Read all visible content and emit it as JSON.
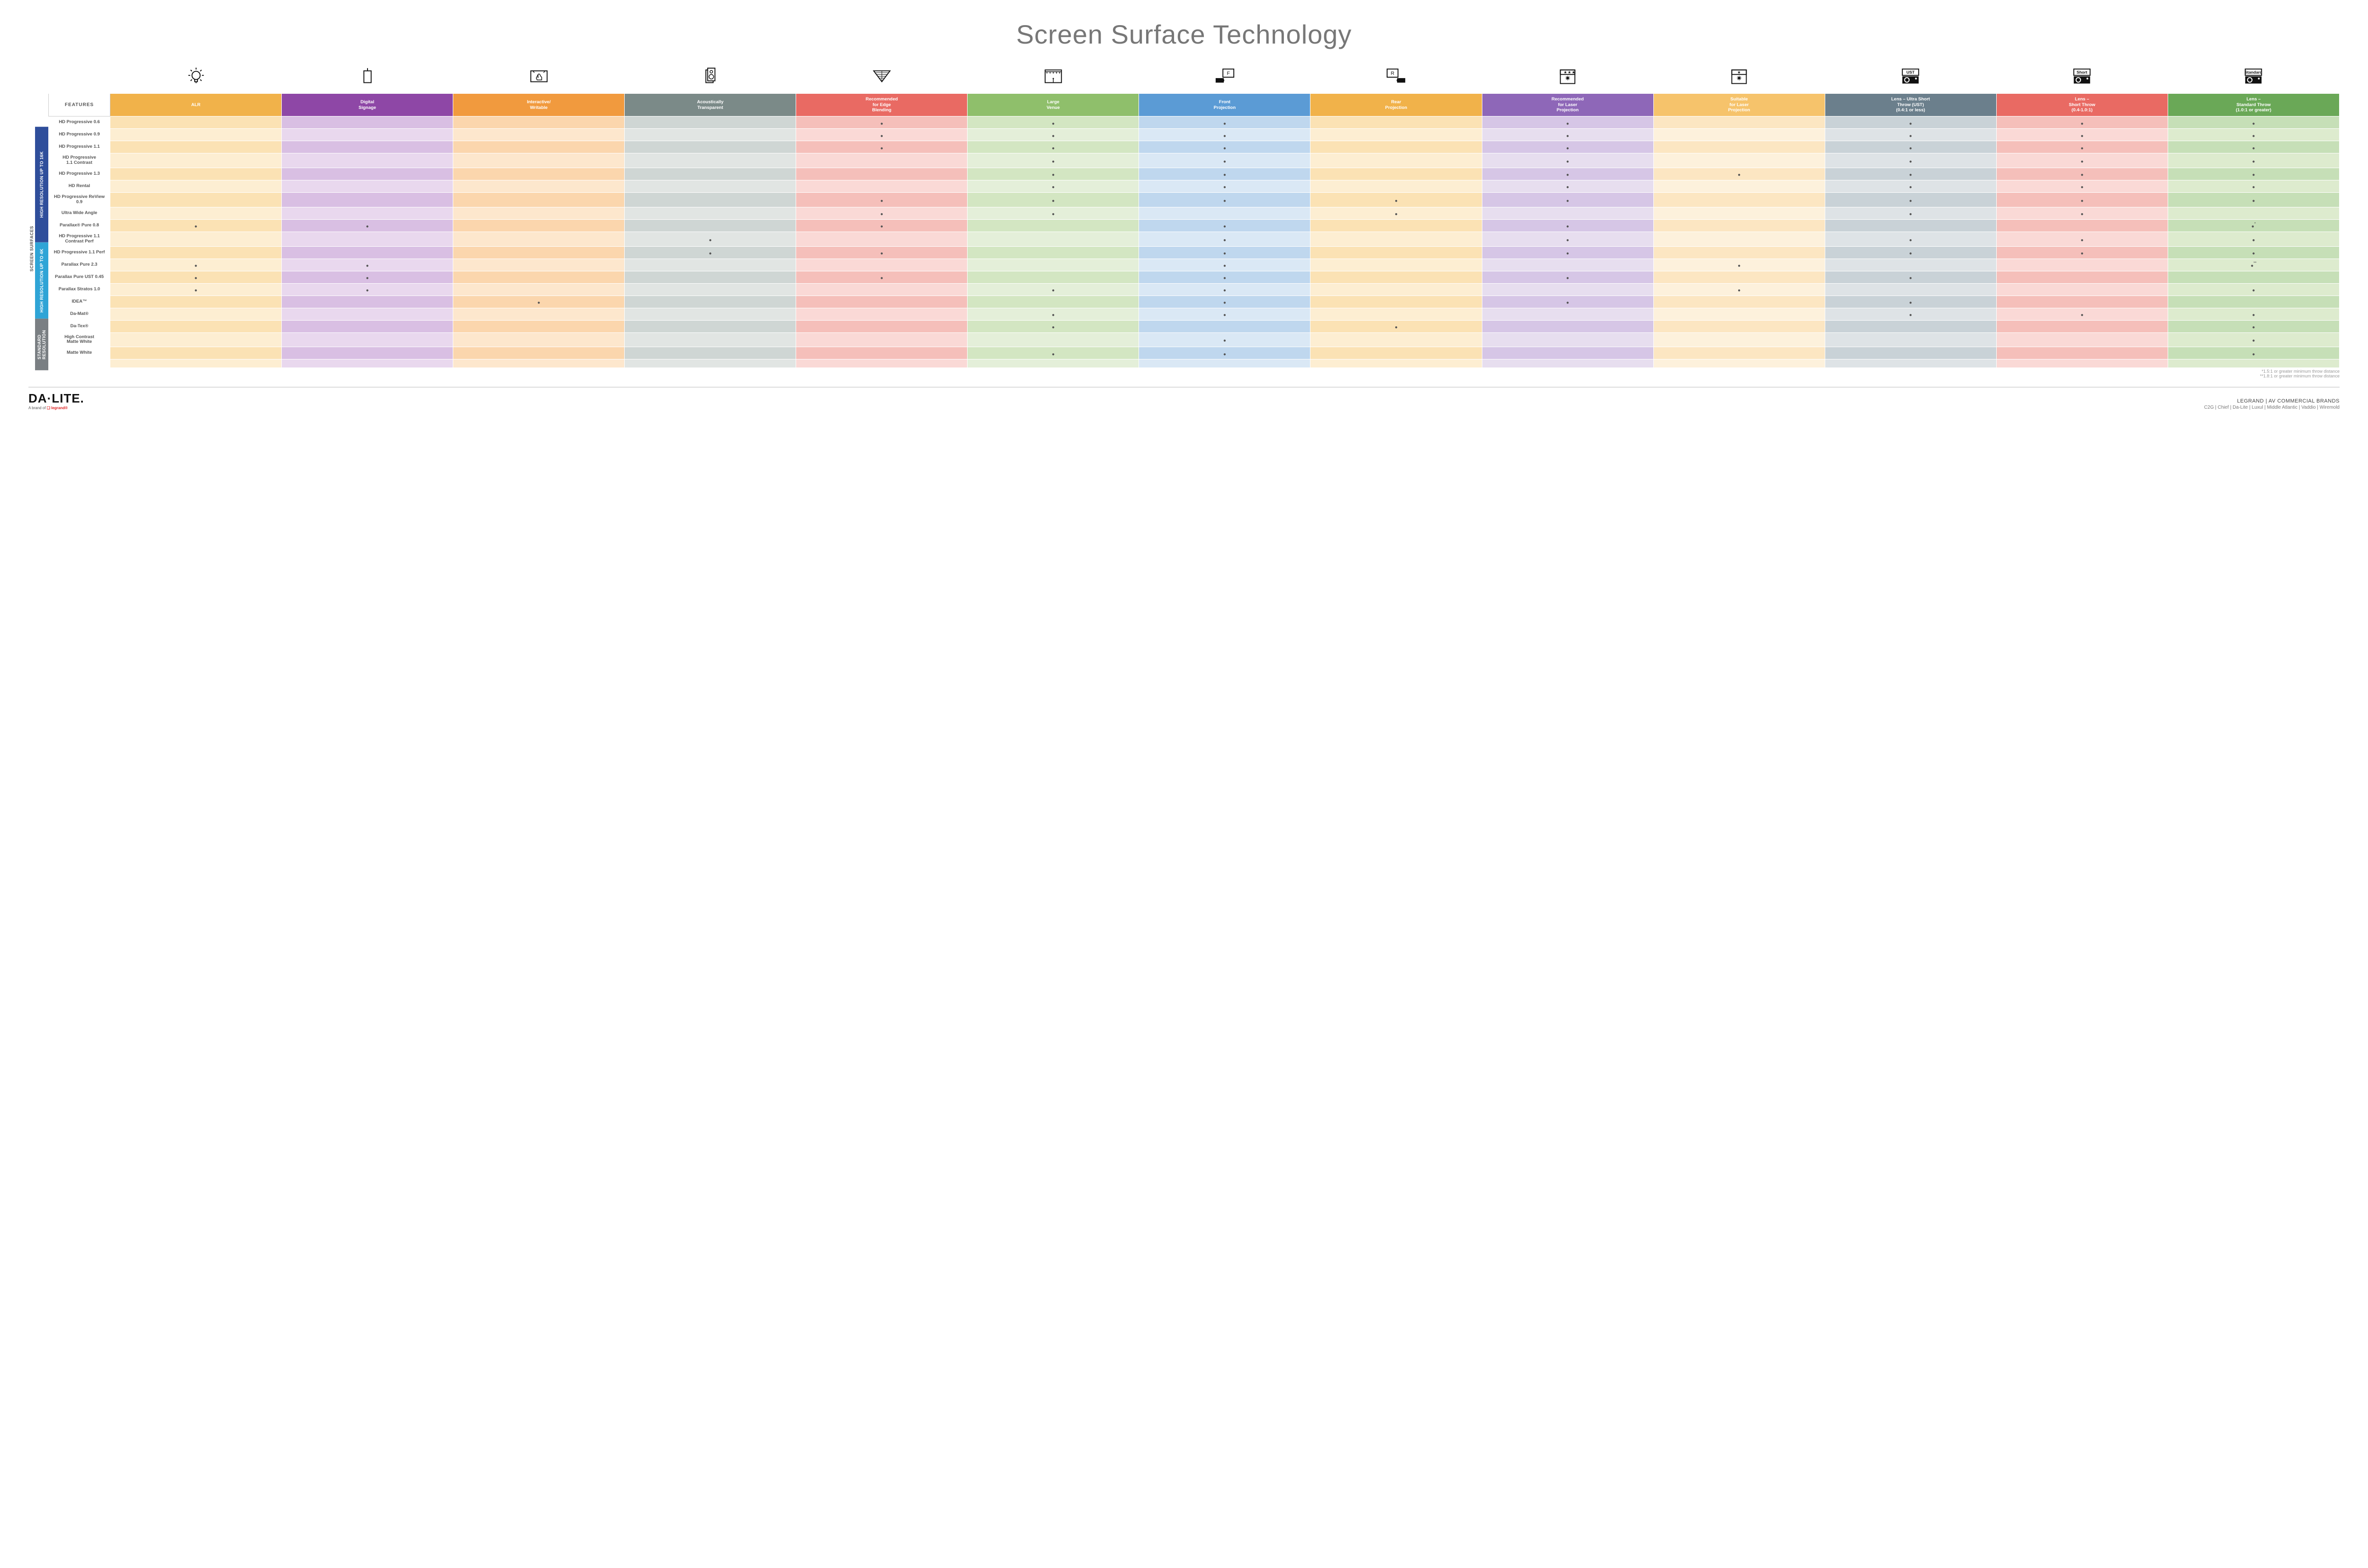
{
  "title": "Screen Surface Technology",
  "colors": {
    "columns": [
      "#f1b24a",
      "#8e47a6",
      "#f19a3e",
      "#7b8a88",
      "#e96a63",
      "#8fbf6b",
      "#5b9bd5",
      "#f1b24a",
      "#8e67b8",
      "#f6c36b",
      "#6b7f8c",
      "#e96a63",
      "#6aa857"
    ],
    "tint_even": [
      "#fbe2b4",
      "#d9bfe3",
      "#fbd6ad",
      "#cfd6d4",
      "#f5bfba",
      "#d3e6c2",
      "#bfd7ee",
      "#fbe2b4",
      "#d6c6e6",
      "#fce6c2",
      "#c9d2d7",
      "#f5bfba",
      "#c6dfb7"
    ],
    "tint_odd": [
      "#fdeed2",
      "#e9d8ee",
      "#fde7cd",
      "#e1e5e3",
      "#fad9d6",
      "#e4efd9",
      "#dae8f5",
      "#fdeed2",
      "#e7deef",
      "#fdf1dc",
      "#dee3e6",
      "#fad9d6",
      "#ddebce"
    ],
    "groups": {
      "g0": "#2f4e9b",
      "g1": "#2fa4d6",
      "g2": "#7a7f83"
    }
  },
  "columns": [
    {
      "key": "alr",
      "label": "ALR",
      "icon": "bulb"
    },
    {
      "key": "signage",
      "label": "Digital\nSignage",
      "icon": "signage"
    },
    {
      "key": "interactive",
      "label": "Interactive/\nWritable",
      "icon": "touch"
    },
    {
      "key": "acoustic",
      "label": "Acoustically\nTransparent",
      "icon": "speaker"
    },
    {
      "key": "edge",
      "label": "Recommended\nfor Edge\nBlending",
      "icon": "blend"
    },
    {
      "key": "large",
      "label": "Large\nVenue",
      "icon": "venue"
    },
    {
      "key": "front",
      "label": "Front\nProjection",
      "icon": "front"
    },
    {
      "key": "rear",
      "label": "Rear\nProjection",
      "icon": "rear"
    },
    {
      "key": "reclaser",
      "label": "Recommended\nfor Laser\nProjection",
      "icon": "laser_rec"
    },
    {
      "key": "suitlaser",
      "label": "Suitable\nfor Laser\nProjection",
      "icon": "laser_suit"
    },
    {
      "key": "ust",
      "label": "Lens – Ultra Short\nThrow (UST)\n(0.4:1 or less)",
      "icon": "proj_ust"
    },
    {
      "key": "short",
      "label": "Lens –\nShort Throw\n(0.4-1.0:1)",
      "icon": "proj_short"
    },
    {
      "key": "std",
      "label": "Lens –\nStandard Throw\n(1.0:1 or greater)",
      "icon": "proj_std"
    }
  ],
  "features_header": "FEATURES",
  "side_label": "SCREEN SURFACES",
  "groups": [
    {
      "key": "g0",
      "label": "HIGH RESOLUTION UP TO 16K",
      "rows": 9
    },
    {
      "key": "g1",
      "label": "HIGH RESOLUTION UP TO 4K",
      "rows": 6
    },
    {
      "key": "g2",
      "label": "STANDARD\nRESOLUTION",
      "rows": 4
    }
  ],
  "rows": [
    {
      "g": "g0",
      "label": "HD Progressive 0.6",
      "c": {
        "edge": "•",
        "large": "•",
        "front": "•",
        "reclaser": "•",
        "ust": "•",
        "short": "•",
        "std": "•"
      }
    },
    {
      "g": "g0",
      "label": "HD Progressive 0.9",
      "c": {
        "edge": "•",
        "large": "•",
        "front": "•",
        "reclaser": "•",
        "ust": "•",
        "short": "•",
        "std": "•"
      }
    },
    {
      "g": "g0",
      "label": "HD Progressive 1.1",
      "c": {
        "edge": "•",
        "large": "•",
        "front": "•",
        "reclaser": "•",
        "ust": "•",
        "short": "•",
        "std": "•"
      }
    },
    {
      "g": "g0",
      "label": "HD Progressive\n1.1 Contrast",
      "c": {
        "large": "•",
        "front": "•",
        "reclaser": "•",
        "ust": "•",
        "short": "•",
        "std": "•"
      }
    },
    {
      "g": "g0",
      "label": "HD Progressive 1.3",
      "c": {
        "large": "•",
        "front": "•",
        "reclaser": "•",
        "suitlaser": "•",
        "ust": "•",
        "short": "•",
        "std": "•"
      }
    },
    {
      "g": "g0",
      "label": "HD Rental",
      "c": {
        "large": "•",
        "front": "•",
        "reclaser": "•",
        "ust": "•",
        "short": "•",
        "std": "•"
      }
    },
    {
      "g": "g0",
      "label": "HD Progressive ReView 0.9",
      "c": {
        "edge": "•",
        "large": "•",
        "front": "•",
        "rear": "•",
        "reclaser": "•",
        "ust": "•",
        "short": "•",
        "std": "•"
      }
    },
    {
      "g": "g0",
      "label": "Ultra Wide Angle",
      "c": {
        "edge": "•",
        "large": "•",
        "rear": "•",
        "ust": "•",
        "short": "•"
      }
    },
    {
      "g": "g0",
      "label": "Parallax® Pure 0.8",
      "c": {
        "alr": "•",
        "signage": "•",
        "edge": "•",
        "front": "•",
        "reclaser": "•",
        "std": "•*"
      }
    },
    {
      "g": "g1",
      "label": "HD Progressive 1.1\nContrast Perf",
      "c": {
        "acoustic": "•",
        "front": "•",
        "reclaser": "•",
        "ust": "•",
        "short": "•",
        "std": "•"
      }
    },
    {
      "g": "g1",
      "label": "HD Progressive 1.1 Perf",
      "c": {
        "acoustic": "•",
        "edge": "•",
        "front": "•",
        "reclaser": "•",
        "ust": "•",
        "short": "•",
        "std": "•"
      }
    },
    {
      "g": "g1",
      "label": "Parallax Pure 2.3",
      "c": {
        "alr": "•",
        "signage": "•",
        "front": "•",
        "suitlaser": "•",
        "std": "•**"
      }
    },
    {
      "g": "g1",
      "label": "Parallax Pure UST 0.45",
      "c": {
        "alr": "•",
        "signage": "•",
        "edge": "•",
        "front": "•",
        "reclaser": "•",
        "ust": "•"
      }
    },
    {
      "g": "g1",
      "label": "Parallax Stratos 1.0",
      "c": {
        "alr": "•",
        "signage": "•",
        "large": "•",
        "front": "•",
        "suitlaser": "•",
        "std": "•"
      }
    },
    {
      "g": "g1",
      "label": "IDEA™",
      "c": {
        "interactive": "•",
        "front": "•",
        "reclaser": "•",
        "ust": "•"
      }
    },
    {
      "g": "g2",
      "label": "Da-Mat®",
      "c": {
        "large": "•",
        "front": "•",
        "ust": "•",
        "short": "•",
        "std": "•"
      }
    },
    {
      "g": "g2",
      "label": "Da-Tex®",
      "c": {
        "large": "•",
        "rear": "•",
        "std": "•"
      }
    },
    {
      "g": "g2",
      "label": "High Contrast\nMatte White",
      "c": {
        "front": "•",
        "std": "•"
      }
    },
    {
      "g": "g2",
      "label": "Matte White",
      "c": {
        "large": "•",
        "front": "•",
        "std": "•"
      }
    }
  ],
  "footnotes": [
    "*1.5:1 or greater minimum throw distance",
    "**1.8:1 or greater minimum throw distance"
  ],
  "footer": {
    "brand_main": "DA·LITE.",
    "brand_sub_pre": "A brand of ",
    "brand_sub_leg": "❑ legrand®",
    "right1": "LEGRAND | AV COMMERCIAL BRANDS",
    "right2": "C2G  |  Chief  |  Da-Lite  |  Luxul  |  Middle Atlantic  |  Vaddio  |  Wiremold"
  },
  "icon_labels": {
    "proj_ust": "UST",
    "proj_short": "Short",
    "proj_std": "Standard"
  }
}
